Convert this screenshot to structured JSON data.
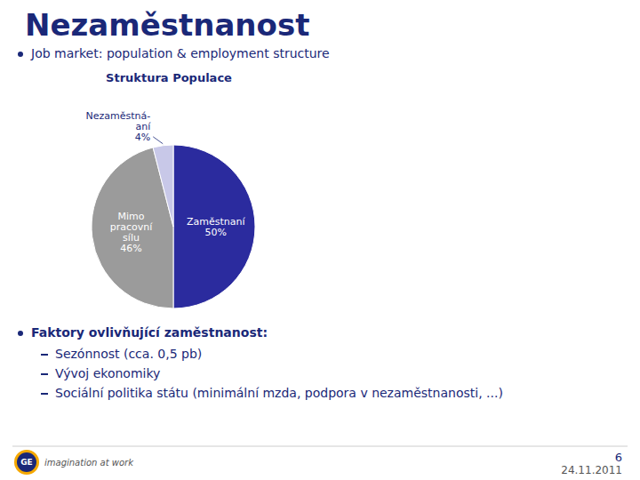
{
  "chart_data": {
    "type": "pie",
    "title": "Struktura Populace",
    "categories": [
      "Zaměstnaní",
      "Mimo\npracovní\nsílu",
      "Nezaměstná-\naní"
    ],
    "values": [
      50,
      46,
      4
    ],
    "value_labels": [
      "50%",
      "46%",
      "4%"
    ],
    "colors": [
      "#2b2b9e",
      "#9b9b9b",
      "#c8c8e8"
    ],
    "data_labels": true
  },
  "slide": {
    "title": "Nezaměstnanost",
    "bullets": [
      "Job market: population & employment structure",
      "Faktory ovlivňující zaměstnanost:"
    ],
    "sub_items": [
      "Sezónnost (cca. 0,5 pb)",
      "Vývoj ekonomiky",
      "Sociální politika státu (minimální mzda, podpora v nezaměstnanosti, ...)"
    ],
    "footer": [
      "6",
      "24.11.2011"
    ],
    "logo": "GE",
    "tagline": "imagination at work",
    "color": "#1a2878"
  }
}
